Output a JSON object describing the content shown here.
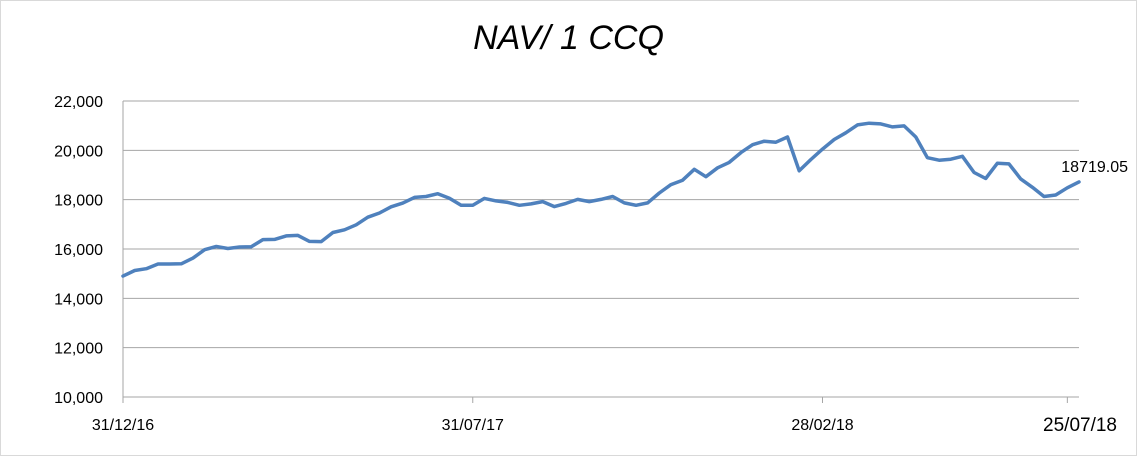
{
  "chart_data": {
    "type": "line",
    "title": "NAV/ 1 CCQ",
    "xlabel": "",
    "ylabel": "",
    "ylim": [
      10000,
      22000
    ],
    "y_ticks": [
      "10,000",
      "12,000",
      "14,000",
      "16,000",
      "18,000",
      "20,000",
      "22,000"
    ],
    "y_tick_values": [
      10000,
      12000,
      14000,
      16000,
      18000,
      20000,
      22000
    ],
    "x_ticks": [
      {
        "label": "31/12/16",
        "index": 0
      },
      {
        "label": "31/07/17",
        "index": 30
      },
      {
        "label": "28/02/18",
        "index": 60
      },
      {
        "label": "25/07/18",
        "index": 81
      }
    ],
    "grid": true,
    "legend": "none",
    "line_color": "#4f81bd",
    "series": [
      {
        "values": [
          14900,
          15130,
          15200,
          15390,
          15390,
          15400,
          15630,
          15970,
          16100,
          16020,
          16080,
          16090,
          16380,
          16390,
          16530,
          16550,
          16310,
          16300,
          16670,
          16780,
          16980,
          17290,
          17460,
          17710,
          17860,
          18090,
          18130,
          18240,
          18060,
          17770,
          17770,
          18050,
          17950,
          17890,
          17770,
          17830,
          17920,
          17720,
          17850,
          18010,
          17920,
          18010,
          18130,
          17870,
          17770,
          17870,
          18270,
          18610,
          18790,
          19230,
          18930,
          19290,
          19510,
          19910,
          20230,
          20370,
          20330,
          20540,
          19170,
          19630,
          20050,
          20440,
          20710,
          21030,
          21100,
          21070,
          20950,
          20990,
          20540,
          19700,
          19600,
          19640,
          19760,
          19100,
          18860,
          19480,
          19450,
          18840,
          18500,
          18130,
          18190,
          18480,
          18719.05
        ]
      }
    ],
    "data_label": {
      "text": "18719.05",
      "index": 82
    }
  }
}
